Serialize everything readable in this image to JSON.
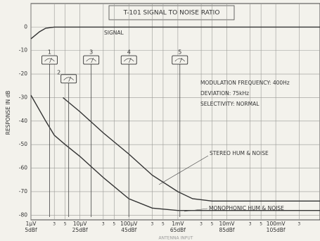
{
  "chart_data": {
    "type": "line",
    "title": "T-101   SIGNAL TO NOISE RATIO",
    "ylabel": "RESPONSE IN dB",
    "xlabel": "ANTENNA INPUT",
    "xscale": "log",
    "grid": true,
    "xlim": [
      1,
      800000
    ],
    "ylim": [
      -82,
      10
    ],
    "yticks": [
      0,
      -10,
      -20,
      -30,
      -40,
      -50,
      -60,
      -70,
      -80
    ],
    "xticks": [
      {
        "value": 1,
        "label": "1μV"
      },
      3,
      5,
      {
        "value": 10,
        "label": "10μV"
      },
      {
        "value": 30,
        "label": "3"
      },
      {
        "value": 50,
        "label": "5"
      },
      {
        "value": 100,
        "label": "100μV"
      },
      {
        "value": 300,
        "label": "3"
      },
      {
        "value": 500,
        "label": "5"
      },
      {
        "value": 1000,
        "label": "1mV"
      },
      {
        "value": 3000,
        "label": "3"
      },
      {
        "value": 5000,
        "label": "5"
      },
      {
        "value": 10000,
        "label": "10mV"
      },
      {
        "value": 30000,
        "label": "3"
      },
      {
        "value": 50000,
        "label": "5"
      },
      {
        "value": 100000,
        "label": "100mV"
      },
      {
        "value": 300000,
        "label": "3"
      }
    ],
    "xtick_dbf": [
      {
        "value": 1,
        "label": "5dBf"
      },
      {
        "value": 10,
        "label": "25dBf"
      },
      {
        "value": 100,
        "label": "45dBf"
      },
      {
        "value": 1000,
        "label": "65dBf"
      },
      {
        "value": 10000,
        "label": "85dBf"
      },
      {
        "value": 100000,
        "label": "105dBf"
      }
    ],
    "series": [
      {
        "name": "SIGNAL",
        "color": "#333333",
        "x": [
          1,
          1.5,
          2,
          3,
          800000
        ],
        "values": [
          -5,
          -2,
          -0.5,
          0,
          0
        ]
      },
      {
        "name": "STEREO HUM & NOISE",
        "color": "#333333",
        "x": [
          4.5,
          10,
          30,
          100,
          300,
          1000,
          2000,
          5000,
          800000
        ],
        "values": [
          -30,
          -36,
          -45,
          -54,
          -63,
          -70,
          -73,
          -74,
          -74
        ]
      },
      {
        "name": "MONOPHONIC HUM & NOISE",
        "color": "#333333",
        "x": [
          1,
          2,
          3,
          5,
          10,
          30,
          100,
          300,
          1000,
          800000
        ],
        "values": [
          -29,
          -40,
          -46,
          -50,
          -55,
          -64,
          -73,
          -77,
          -78,
          -78
        ]
      }
    ],
    "meters": [
      {
        "label": "1",
        "x": 2.4,
        "y": -14
      },
      {
        "label": "2",
        "x": 5.9,
        "y": -22
      },
      {
        "label": "3",
        "x": 17,
        "y": -14
      },
      {
        "label": "4",
        "x": 100,
        "y": -14
      },
      {
        "label": "5",
        "x": 1100,
        "y": -14
      }
    ],
    "notes": [
      "MODULATION FREQUENCY: 400Hz",
      "DEVIATION: 75kHz",
      "SELECTIVITY: NORMAL"
    ]
  }
}
